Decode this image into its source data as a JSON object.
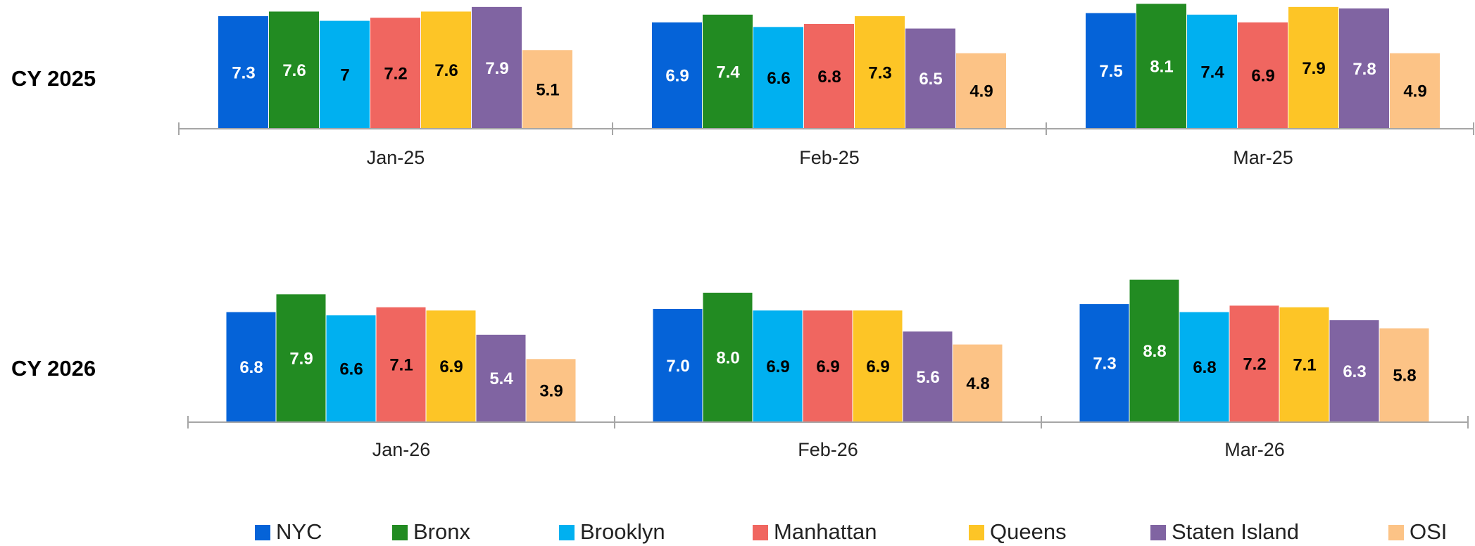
{
  "chart_data": [
    {
      "type": "bar",
      "title": "CY 2025",
      "categories": [
        "Jan-25",
        "Feb-25",
        "Mar-25"
      ],
      "ylim": [
        0,
        8.35
      ],
      "series": [
        {
          "name": "NYC",
          "color": "#0563d8",
          "label_color": "#ffffff",
          "values": [
            7.3,
            6.9,
            7.5
          ]
        },
        {
          "name": "Bronx",
          "color": "#228b22",
          "label_color": "#ffffff",
          "values": [
            7.6,
            7.4,
            8.1
          ]
        },
        {
          "name": "Brooklyn",
          "color": "#00b0f0",
          "label_color": "#000000",
          "values": [
            7,
            6.6,
            7.4
          ]
        },
        {
          "name": "Manhattan",
          "color": "#f06660",
          "label_color": "#000000",
          "values": [
            7.2,
            6.8,
            6.9
          ]
        },
        {
          "name": "Queens",
          "color": "#fdc526",
          "label_color": "#000000",
          "values": [
            7.6,
            7.3,
            7.9
          ]
        },
        {
          "name": "Staten Island",
          "color": "#8064a2",
          "label_color": "#ffffff",
          "values": [
            7.9,
            6.5,
            7.8
          ]
        },
        {
          "name": "OSI",
          "color": "#fcc386",
          "label_color": "#000000",
          "values": [
            5.1,
            4.9,
            4.9
          ]
        }
      ]
    },
    {
      "type": "bar",
      "title": "CY 2026",
      "categories": [
        "Jan-26",
        "Feb-26",
        "Mar-26"
      ],
      "ylim": [
        0,
        9
      ],
      "series": [
        {
          "name": "NYC",
          "color": "#0563d8",
          "label_color": "#ffffff",
          "values": [
            6.8,
            7.0,
            7.3
          ],
          "value_labels": [
            "6.8",
            "7.0",
            "7.3"
          ]
        },
        {
          "name": "Bronx",
          "color": "#228b22",
          "label_color": "#ffffff",
          "values": [
            7.9,
            8.0,
            8.8
          ],
          "value_labels": [
            "7.9",
            "8.0",
            "8.8"
          ]
        },
        {
          "name": "Brooklyn",
          "color": "#00b0f0",
          "label_color": "#000000",
          "values": [
            6.6,
            6.9,
            6.8
          ]
        },
        {
          "name": "Manhattan",
          "color": "#f06660",
          "label_color": "#000000",
          "values": [
            7.1,
            6.9,
            7.2
          ]
        },
        {
          "name": "Queens",
          "color": "#fdc526",
          "label_color": "#000000",
          "values": [
            6.9,
            6.9,
            7.1
          ]
        },
        {
          "name": "Staten Island",
          "color": "#8064a2",
          "label_color": "#ffffff",
          "values": [
            5.4,
            5.6,
            6.3
          ]
        },
        {
          "name": "OSI",
          "color": "#fcc386",
          "label_color": "#000000",
          "values": [
            3.9,
            4.8,
            5.8
          ]
        }
      ]
    }
  ]
}
